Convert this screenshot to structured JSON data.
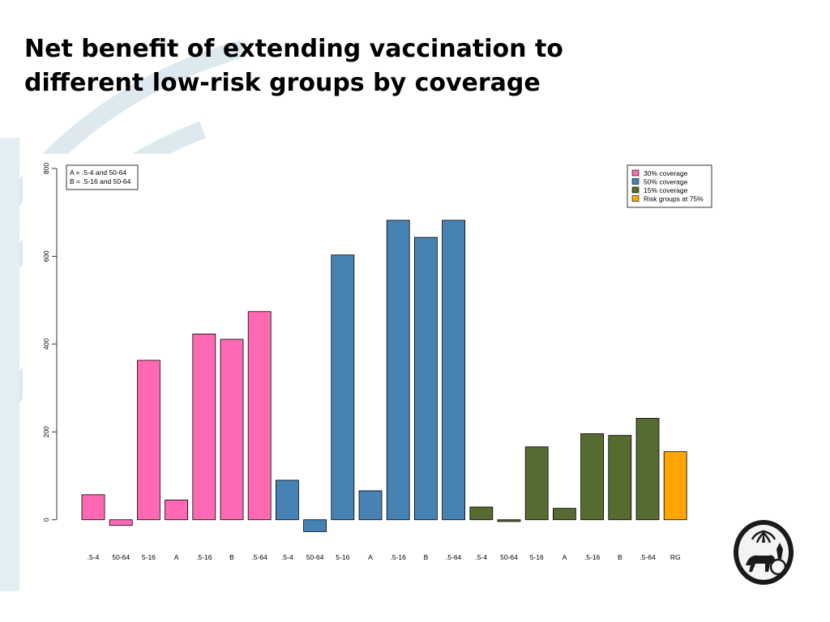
{
  "slide": {
    "title_line1": "Net benefit of extending vaccination to",
    "title_line2": "different low-risk groups by coverage"
  },
  "colors": {
    "pink": "#ff69b4",
    "blue": "#4682b4",
    "green": "#556b2f",
    "orange": "#ffa500"
  },
  "chart_data": {
    "type": "bar",
    "title": "",
    "xlabel": "",
    "ylabel": "",
    "ylim": [
      -30,
      800
    ],
    "yticks": [
      0,
      200,
      400,
      600,
      800
    ],
    "grid": false,
    "legend_position": "top-right",
    "notes": [
      "A = .5-4 and 50-64",
      "B = .5-16 and 50-64"
    ],
    "legend": [
      {
        "label": "30% coverage",
        "color": "#ff69b4"
      },
      {
        "label": "50% coverage",
        "color": "#4682b4"
      },
      {
        "label": "15% coverage",
        "color": "#556b2f"
      },
      {
        "label": "Risk groups at 75%",
        "color": "#ffa500"
      }
    ],
    "categories": [
      ".5-4",
      "50-64",
      "5-16",
      "A",
      ".5-16",
      "B",
      ".5-64",
      ".5-4",
      "50-64",
      "5-16",
      "A",
      ".5-16",
      "B",
      ".5-64",
      ".5-4",
      "50-64",
      "5-16",
      "A",
      ".5-16",
      "B",
      ".5-64",
      "RG"
    ],
    "values": [
      57,
      -13,
      363,
      45,
      423,
      411,
      474,
      90,
      -27,
      603,
      66,
      682,
      643,
      682,
      29,
      -4,
      166,
      26,
      196,
      192,
      231,
      155
    ],
    "bar_groups": [
      "30% coverage",
      "30% coverage",
      "30% coverage",
      "30% coverage",
      "30% coverage",
      "30% coverage",
      "30% coverage",
      "50% coverage",
      "50% coverage",
      "50% coverage",
      "50% coverage",
      "50% coverage",
      "50% coverage",
      "50% coverage",
      "15% coverage",
      "15% coverage",
      "15% coverage",
      "15% coverage",
      "15% coverage",
      "15% coverage",
      "15% coverage",
      "Risk groups at 75%"
    ]
  }
}
